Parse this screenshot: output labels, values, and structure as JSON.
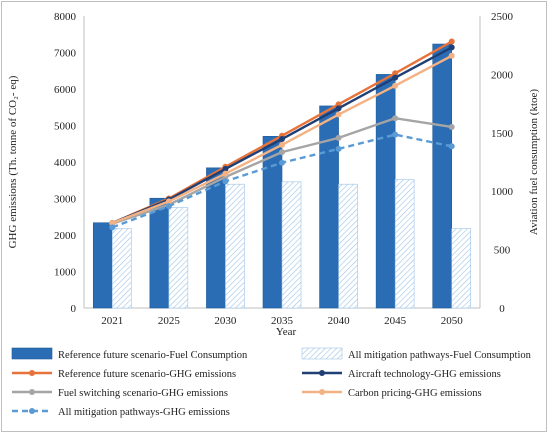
{
  "chart_data": {
    "type": "bar",
    "categories": [
      "2021",
      "2025",
      "2030",
      "2035",
      "2040",
      "2045",
      "2050"
    ],
    "xlabel": "Year",
    "ylabel_left": "GHG emissions  (Th. tonne of CO₂- eq)",
    "ylabel_right": "Aviation fuel consumption (ktoe)",
    "ylim_left": [
      0,
      8000
    ],
    "ylim_right": [
      0,
      2500
    ],
    "yticks_left": [
      "0",
      "1000",
      "2000",
      "3000",
      "4000",
      "5000",
      "6000",
      "7000",
      "8000"
    ],
    "yticks_right": [
      "0",
      "500",
      "1000",
      "1500",
      "2000",
      "2500"
    ],
    "bar_series": [
      {
        "name": "Reference future scenario-Fuel Consumption",
        "axis": "right",
        "values": [
          730,
          940,
          1200,
          1470,
          1730,
          2000,
          2260
        ],
        "color": "#2a6db5"
      },
      {
        "name": "All mitigation pathways-Fuel Consumption",
        "axis": "right",
        "values": [
          680,
          860,
          1060,
          1080,
          1060,
          1100,
          680
        ],
        "color": "#bdd7ee",
        "pattern": "hatch"
      }
    ],
    "line_series": [
      {
        "name": "Reference future scenario-GHG emissions",
        "axis": "left",
        "values": [
          2330,
          3000,
          3870,
          4720,
          5580,
          6430,
          7300
        ],
        "color": "#e8733a",
        "style": "solid"
      },
      {
        "name": "Aircraft technology-GHG emissions",
        "axis": "left",
        "values": [
          2330,
          2970,
          3810,
          4630,
          5470,
          6310,
          7140
        ],
        "color": "#1f3f75",
        "style": "solid"
      },
      {
        "name": "Fuel switching scenario-GHG emissions",
        "axis": "left",
        "values": [
          2310,
          2830,
          3590,
          4270,
          4660,
          5200,
          4960
        ],
        "color": "#a5a5a5",
        "style": "solid"
      },
      {
        "name": "Carbon pricing-GHG emissions",
        "axis": "left",
        "values": [
          2330,
          2920,
          3680,
          4470,
          5300,
          6090,
          6910
        ],
        "color": "#f4b183",
        "style": "solid"
      },
      {
        "name": "All mitigation pathways-GHG emissions",
        "axis": "left",
        "values": [
          2210,
          2790,
          3470,
          3980,
          4360,
          4750,
          4430
        ],
        "color": "#5b9bd5",
        "style": "dashed"
      }
    ],
    "legend_placement": "bottom",
    "grid": false
  }
}
